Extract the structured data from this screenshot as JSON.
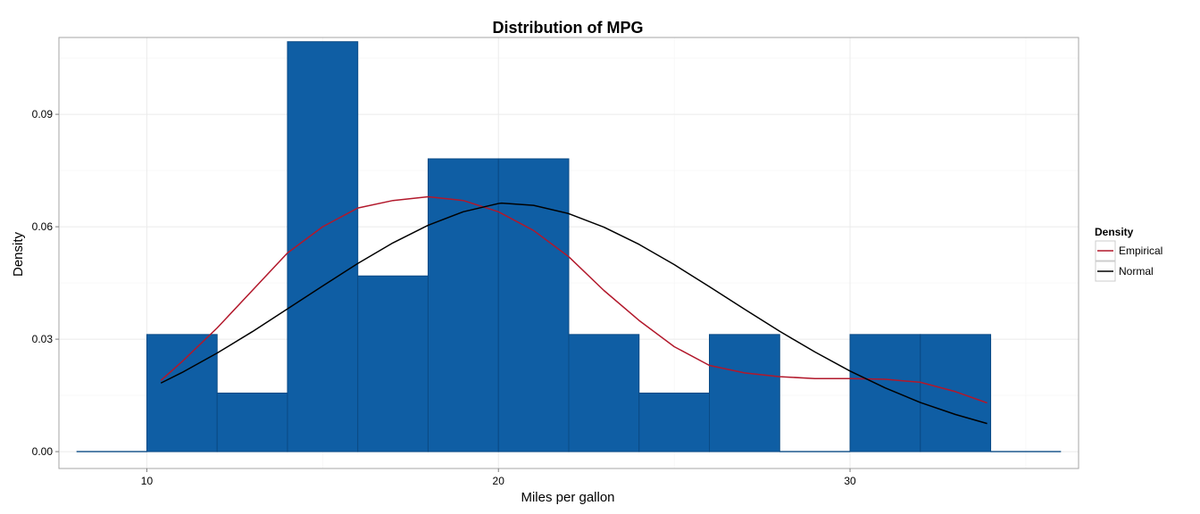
{
  "chart_data": {
    "type": "bar",
    "title": "Distribution of MPG",
    "xlabel": "Miles per gallon",
    "ylabel": "Density",
    "xlim": [
      7.5,
      36.5
    ],
    "ylim": [
      -0.0045,
      0.1105
    ],
    "x_ticks": [
      10,
      20,
      30
    ],
    "x_tick_labels": [
      "10",
      "20",
      "30"
    ],
    "y_ticks": [
      0,
      0.03,
      0.06,
      0.09
    ],
    "y_tick_labels": [
      "0.00",
      "0.03",
      "0.06",
      "0.09"
    ],
    "grid": true,
    "histogram": {
      "bin_width": 2,
      "bins": [
        {
          "x0": 8,
          "x1": 10,
          "density": 0
        },
        {
          "x0": 10,
          "x1": 12,
          "density": 0.03125
        },
        {
          "x0": 12,
          "x1": 14,
          "density": 0.015625
        },
        {
          "x0": 14,
          "x1": 16,
          "density": 0.109375
        },
        {
          "x0": 16,
          "x1": 18,
          "density": 0.046875
        },
        {
          "x0": 18,
          "x1": 20,
          "density": 0.078125
        },
        {
          "x0": 20,
          "x1": 22,
          "density": 0.078125
        },
        {
          "x0": 22,
          "x1": 24,
          "density": 0.03125
        },
        {
          "x0": 24,
          "x1": 26,
          "density": 0.015625
        },
        {
          "x0": 26,
          "x1": 28,
          "density": 0.03125
        },
        {
          "x0": 28,
          "x1": 30,
          "density": 0
        },
        {
          "x0": 30,
          "x1": 32,
          "density": 0.03125
        },
        {
          "x0": 32,
          "x1": 34,
          "density": 0.03125
        },
        {
          "x0": 34,
          "x1": 36,
          "density": 0
        }
      ]
    },
    "series": [
      {
        "name": "Empirical",
        "color": "#b2182b",
        "x": [
          10.4,
          11,
          12,
          13,
          14,
          15,
          16,
          17,
          18,
          19,
          20,
          21,
          22,
          23,
          24,
          25,
          26,
          27,
          28,
          29,
          30,
          31,
          32,
          33,
          33.9
        ],
        "y": [
          0.019,
          0.024,
          0.033,
          0.043,
          0.053,
          0.06,
          0.065,
          0.067,
          0.068,
          0.067,
          0.064,
          0.059,
          0.052,
          0.043,
          0.035,
          0.028,
          0.023,
          0.021,
          0.02,
          0.0195,
          0.0195,
          0.0193,
          0.0185,
          0.016,
          0.013
        ]
      },
      {
        "name": "Normal",
        "color": "#000000",
        "x": [
          10.4,
          11,
          12,
          13,
          14,
          15,
          16,
          17,
          18,
          19,
          20,
          20.09,
          21,
          22,
          23,
          24,
          25,
          26,
          27,
          28,
          29,
          30,
          31,
          32,
          33,
          33.9
        ],
        "y": [
          0.0183,
          0.0211,
          0.0263,
          0.032,
          0.0381,
          0.0442,
          0.0502,
          0.0557,
          0.0604,
          0.064,
          0.0662,
          0.0663,
          0.0657,
          0.0635,
          0.0599,
          0.0553,
          0.0499,
          0.044,
          0.038,
          0.0321,
          0.0266,
          0.0215,
          0.017,
          0.0131,
          0.0099,
          0.0075
        ]
      }
    ],
    "legend": {
      "title": "Density",
      "position": "right",
      "items": [
        "Empirical",
        "Normal"
      ]
    },
    "colors": {
      "bar_fill": "#0f5ea4",
      "bar_outline": "#0a4a85",
      "panel_border": "#a6a6a6",
      "grid_major": "#ebebeb",
      "grid_minor": "#f5f5f5"
    }
  }
}
